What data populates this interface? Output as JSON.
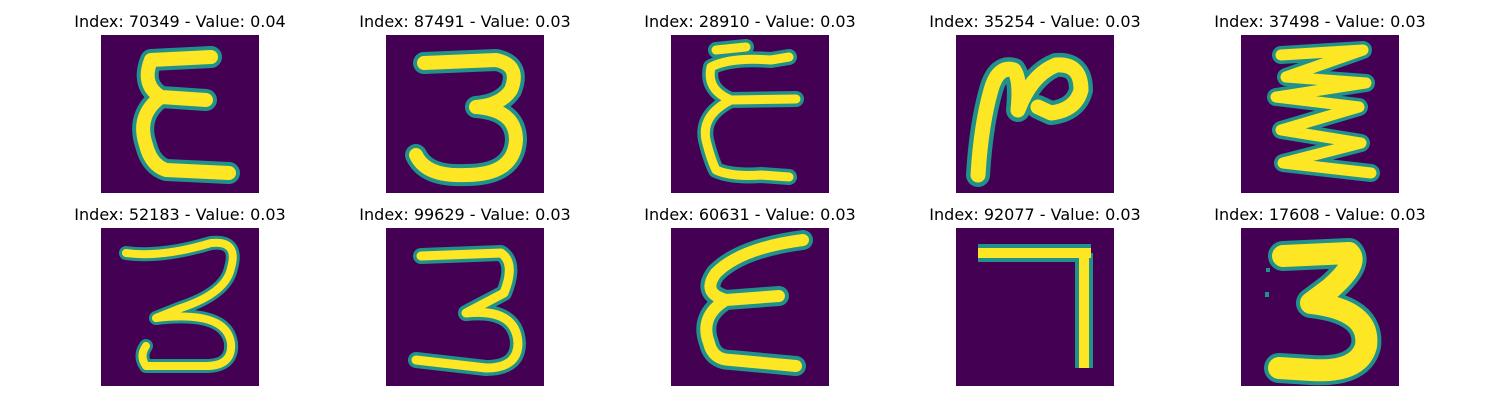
{
  "colors": {
    "background": "#440154",
    "stroke_mid": "#21918c",
    "stroke_high": "#fde725",
    "stroke_edge": "#7ad151"
  },
  "panels": [
    {
      "title": "Index: 70349 - Value: 0.04",
      "digit_icon": "e-shape"
    },
    {
      "title": "Index: 87491 - Value: 0.03",
      "digit_icon": "three"
    },
    {
      "title": "Index: 28910 - Value: 0.03",
      "digit_icon": "e-shape-thin"
    },
    {
      "title": "Index: 35254 - Value: 0.03",
      "digit_icon": "n-shape"
    },
    {
      "title": "Index: 37498 - Value: 0.03",
      "digit_icon": "zigzag"
    },
    {
      "title": "Index: 52183 - Value: 0.03",
      "digit_icon": "three-thin"
    },
    {
      "title": "Index: 99629 - Value: 0.03",
      "digit_icon": "three"
    },
    {
      "title": "Index: 60631 - Value: 0.03",
      "digit_icon": "e-shape"
    },
    {
      "title": "Index: 92077 - Value: 0.03",
      "digit_icon": "seven"
    },
    {
      "title": "Index: 17608 - Value: 0.03",
      "digit_icon": "three-bold"
    }
  ]
}
